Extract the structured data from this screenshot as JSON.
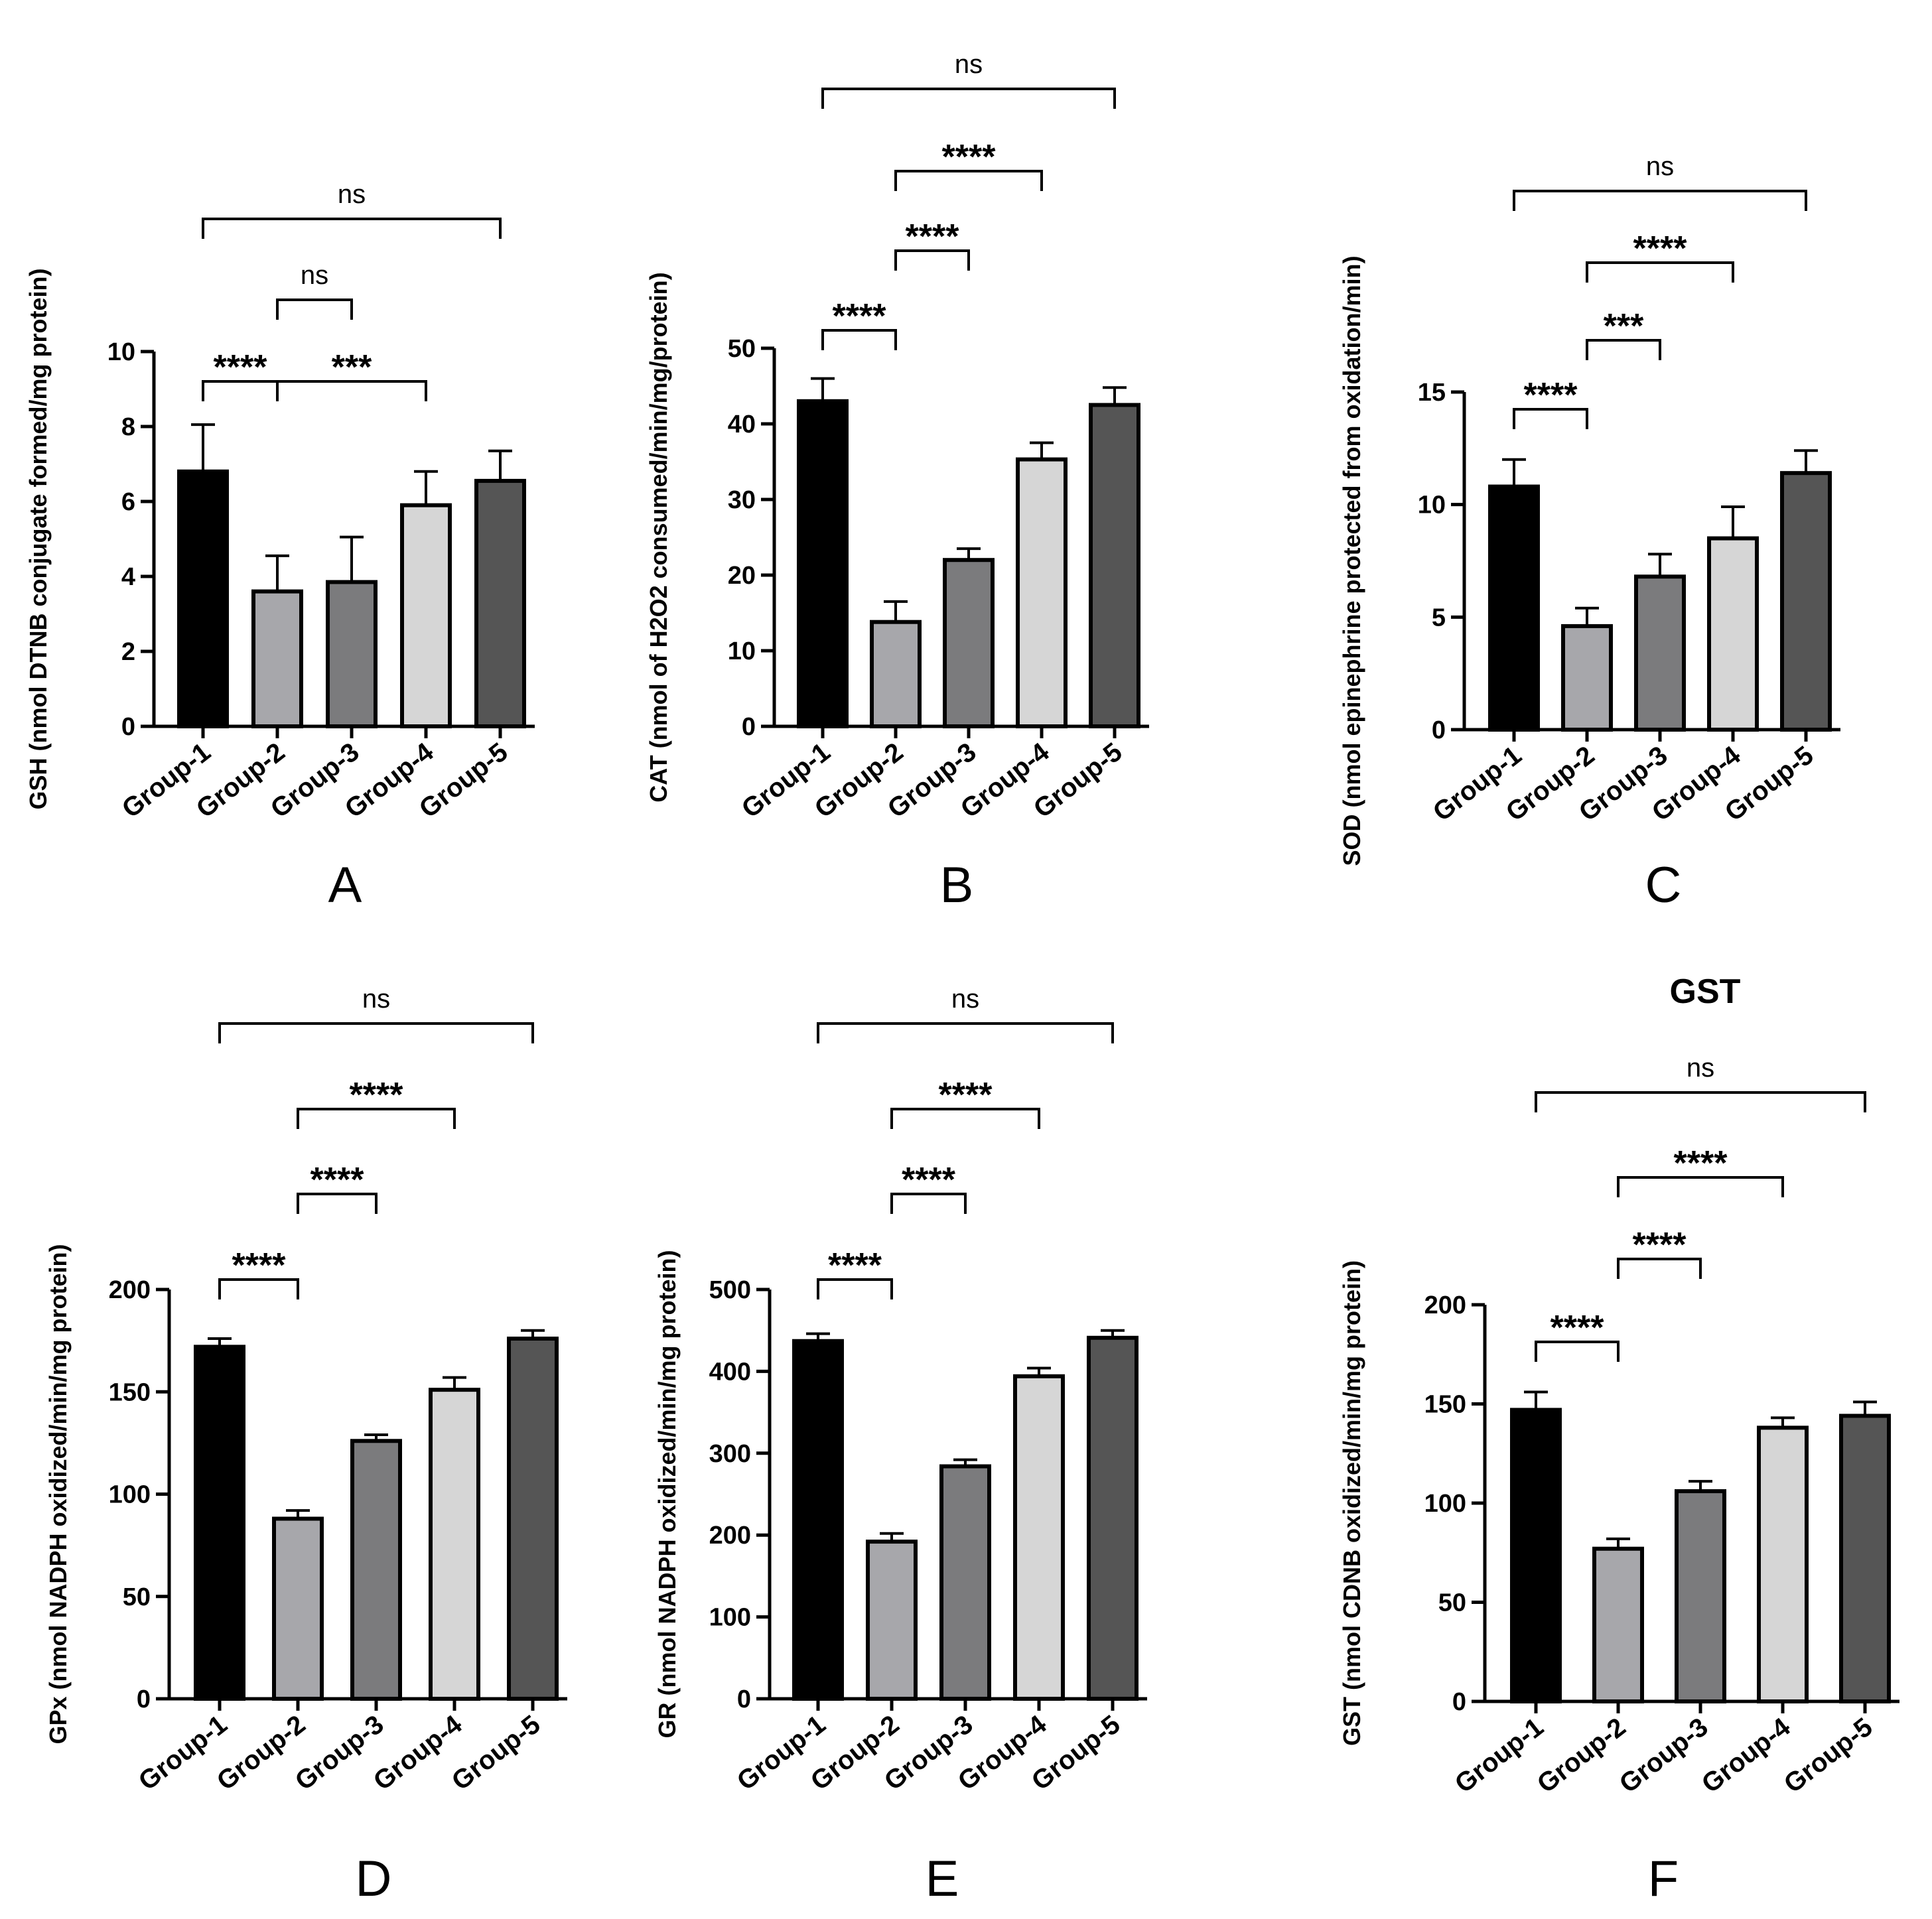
{
  "colors": {
    "group1": "#000000",
    "group2": "#a7a7ab",
    "group3": "#7b7b7d",
    "group4": "#d6d6d6",
    "group5": "#555555",
    "axis": "#000000",
    "background": "#ffffff"
  },
  "chart_data": [
    {
      "type": "bar",
      "panel": "A",
      "title": "",
      "ylabel": "GSH (nmol DTNB conjugate formed/mg protein)",
      "categories": [
        "Group-1",
        "Group-2",
        "Group-3",
        "Group-4",
        "Group-5"
      ],
      "values": [
        6.8,
        3.6,
        3.85,
        5.9,
        6.55
      ],
      "errors": [
        1.25,
        0.95,
        1.2,
        0.9,
        0.8
      ],
      "ylim": [
        0,
        10
      ],
      "yticks": [
        "0",
        "2",
        "4",
        "6",
        "8",
        "10"
      ],
      "comparisons": [
        {
          "from": 0,
          "to": 1,
          "label": "****"
        },
        {
          "from": 1,
          "to": 3,
          "label": "***"
        },
        {
          "from": 1,
          "to": 2,
          "label": "ns"
        },
        {
          "from": 0,
          "to": 4,
          "label": "ns"
        }
      ]
    },
    {
      "type": "bar",
      "panel": "B",
      "title": "",
      "ylabel": "CAT (nmol of H2O2 consumed/min/mg/protein)",
      "categories": [
        "Group-1",
        "Group-2",
        "Group-3",
        "Group-4",
        "Group-5"
      ],
      "values": [
        43,
        13.8,
        22,
        35.3,
        42.5
      ],
      "errors": [
        3,
        2.7,
        1.5,
        2.2,
        2.3
      ],
      "ylim": [
        0,
        50
      ],
      "yticks": [
        "0",
        "10",
        "20",
        "30",
        "40",
        "50"
      ],
      "comparisons": [
        {
          "from": 0,
          "to": 1,
          "label": "****"
        },
        {
          "from": 1,
          "to": 2,
          "label": "****"
        },
        {
          "from": 1,
          "to": 3,
          "label": "****"
        },
        {
          "from": 0,
          "to": 4,
          "label": "ns"
        }
      ]
    },
    {
      "type": "bar",
      "panel": "C",
      "title": "",
      "ylabel": "SOD (nmol epinephrine protected from oxidation/min)",
      "categories": [
        "Group-1",
        "Group-2",
        "Group-3",
        "Group-4",
        "Group-5"
      ],
      "values": [
        10.8,
        4.6,
        6.8,
        8.5,
        11.4
      ],
      "errors": [
        1.2,
        0.8,
        1,
        1.4,
        1
      ],
      "ylim": [
        0,
        15
      ],
      "yticks": [
        "0",
        "5",
        "10",
        "15"
      ],
      "comparisons": [
        {
          "from": 0,
          "to": 1,
          "label": "****"
        },
        {
          "from": 1,
          "to": 2,
          "label": "***"
        },
        {
          "from": 1,
          "to": 3,
          "label": "****"
        },
        {
          "from": 0,
          "to": 4,
          "label": "ns"
        }
      ]
    },
    {
      "type": "bar",
      "panel": "D",
      "title": "",
      "ylabel": "GPx (nmol NADPH oxidized/min/mg protein)",
      "categories": [
        "Group-1",
        "Group-2",
        "Group-3",
        "Group-4",
        "Group-5"
      ],
      "values": [
        172,
        88,
        126,
        151,
        176
      ],
      "errors": [
        4,
        4,
        3,
        6,
        4
      ],
      "ylim": [
        0,
        200
      ],
      "yticks": [
        "0",
        "50",
        "100",
        "150",
        "200"
      ],
      "comparisons": [
        {
          "from": 0,
          "to": 1,
          "label": "****"
        },
        {
          "from": 1,
          "to": 2,
          "label": "****"
        },
        {
          "from": 1,
          "to": 3,
          "label": "****"
        },
        {
          "from": 0,
          "to": 4,
          "label": "ns"
        }
      ]
    },
    {
      "type": "bar",
      "panel": "E",
      "title": "",
      "ylabel": "GR (nmol NADPH oxidized/min/mg protein)",
      "categories": [
        "Group-1",
        "Group-2",
        "Group-3",
        "Group-4",
        "Group-5"
      ],
      "values": [
        437,
        192,
        284,
        394,
        441
      ],
      "errors": [
        9,
        10,
        8,
        10,
        9
      ],
      "ylim": [
        0,
        500
      ],
      "yticks": [
        "0",
        "100",
        "200",
        "300",
        "400",
        "500"
      ],
      "comparisons": [
        {
          "from": 0,
          "to": 1,
          "label": "****"
        },
        {
          "from": 1,
          "to": 2,
          "label": "****"
        },
        {
          "from": 1,
          "to": 3,
          "label": "****"
        },
        {
          "from": 0,
          "to": 4,
          "label": "ns"
        }
      ]
    },
    {
      "type": "bar",
      "panel": "F",
      "title": "GST",
      "ylabel": "GST (nmol CDNB oxidized/min/mg protein)",
      "categories": [
        "Group-1",
        "Group-2",
        "Group-3",
        "Group-4",
        "Group-5"
      ],
      "values": [
        147,
        77,
        106,
        138,
        144
      ],
      "errors": [
        9,
        5,
        5,
        5,
        7
      ],
      "ylim": [
        0,
        200
      ],
      "yticks": [
        "0",
        "50",
        "100",
        "150",
        "200"
      ],
      "comparisons": [
        {
          "from": 0,
          "to": 1,
          "label": "****"
        },
        {
          "from": 1,
          "to": 2,
          "label": "****"
        },
        {
          "from": 1,
          "to": 3,
          "label": "****"
        },
        {
          "from": 0,
          "to": 4,
          "label": "ns"
        }
      ]
    }
  ]
}
